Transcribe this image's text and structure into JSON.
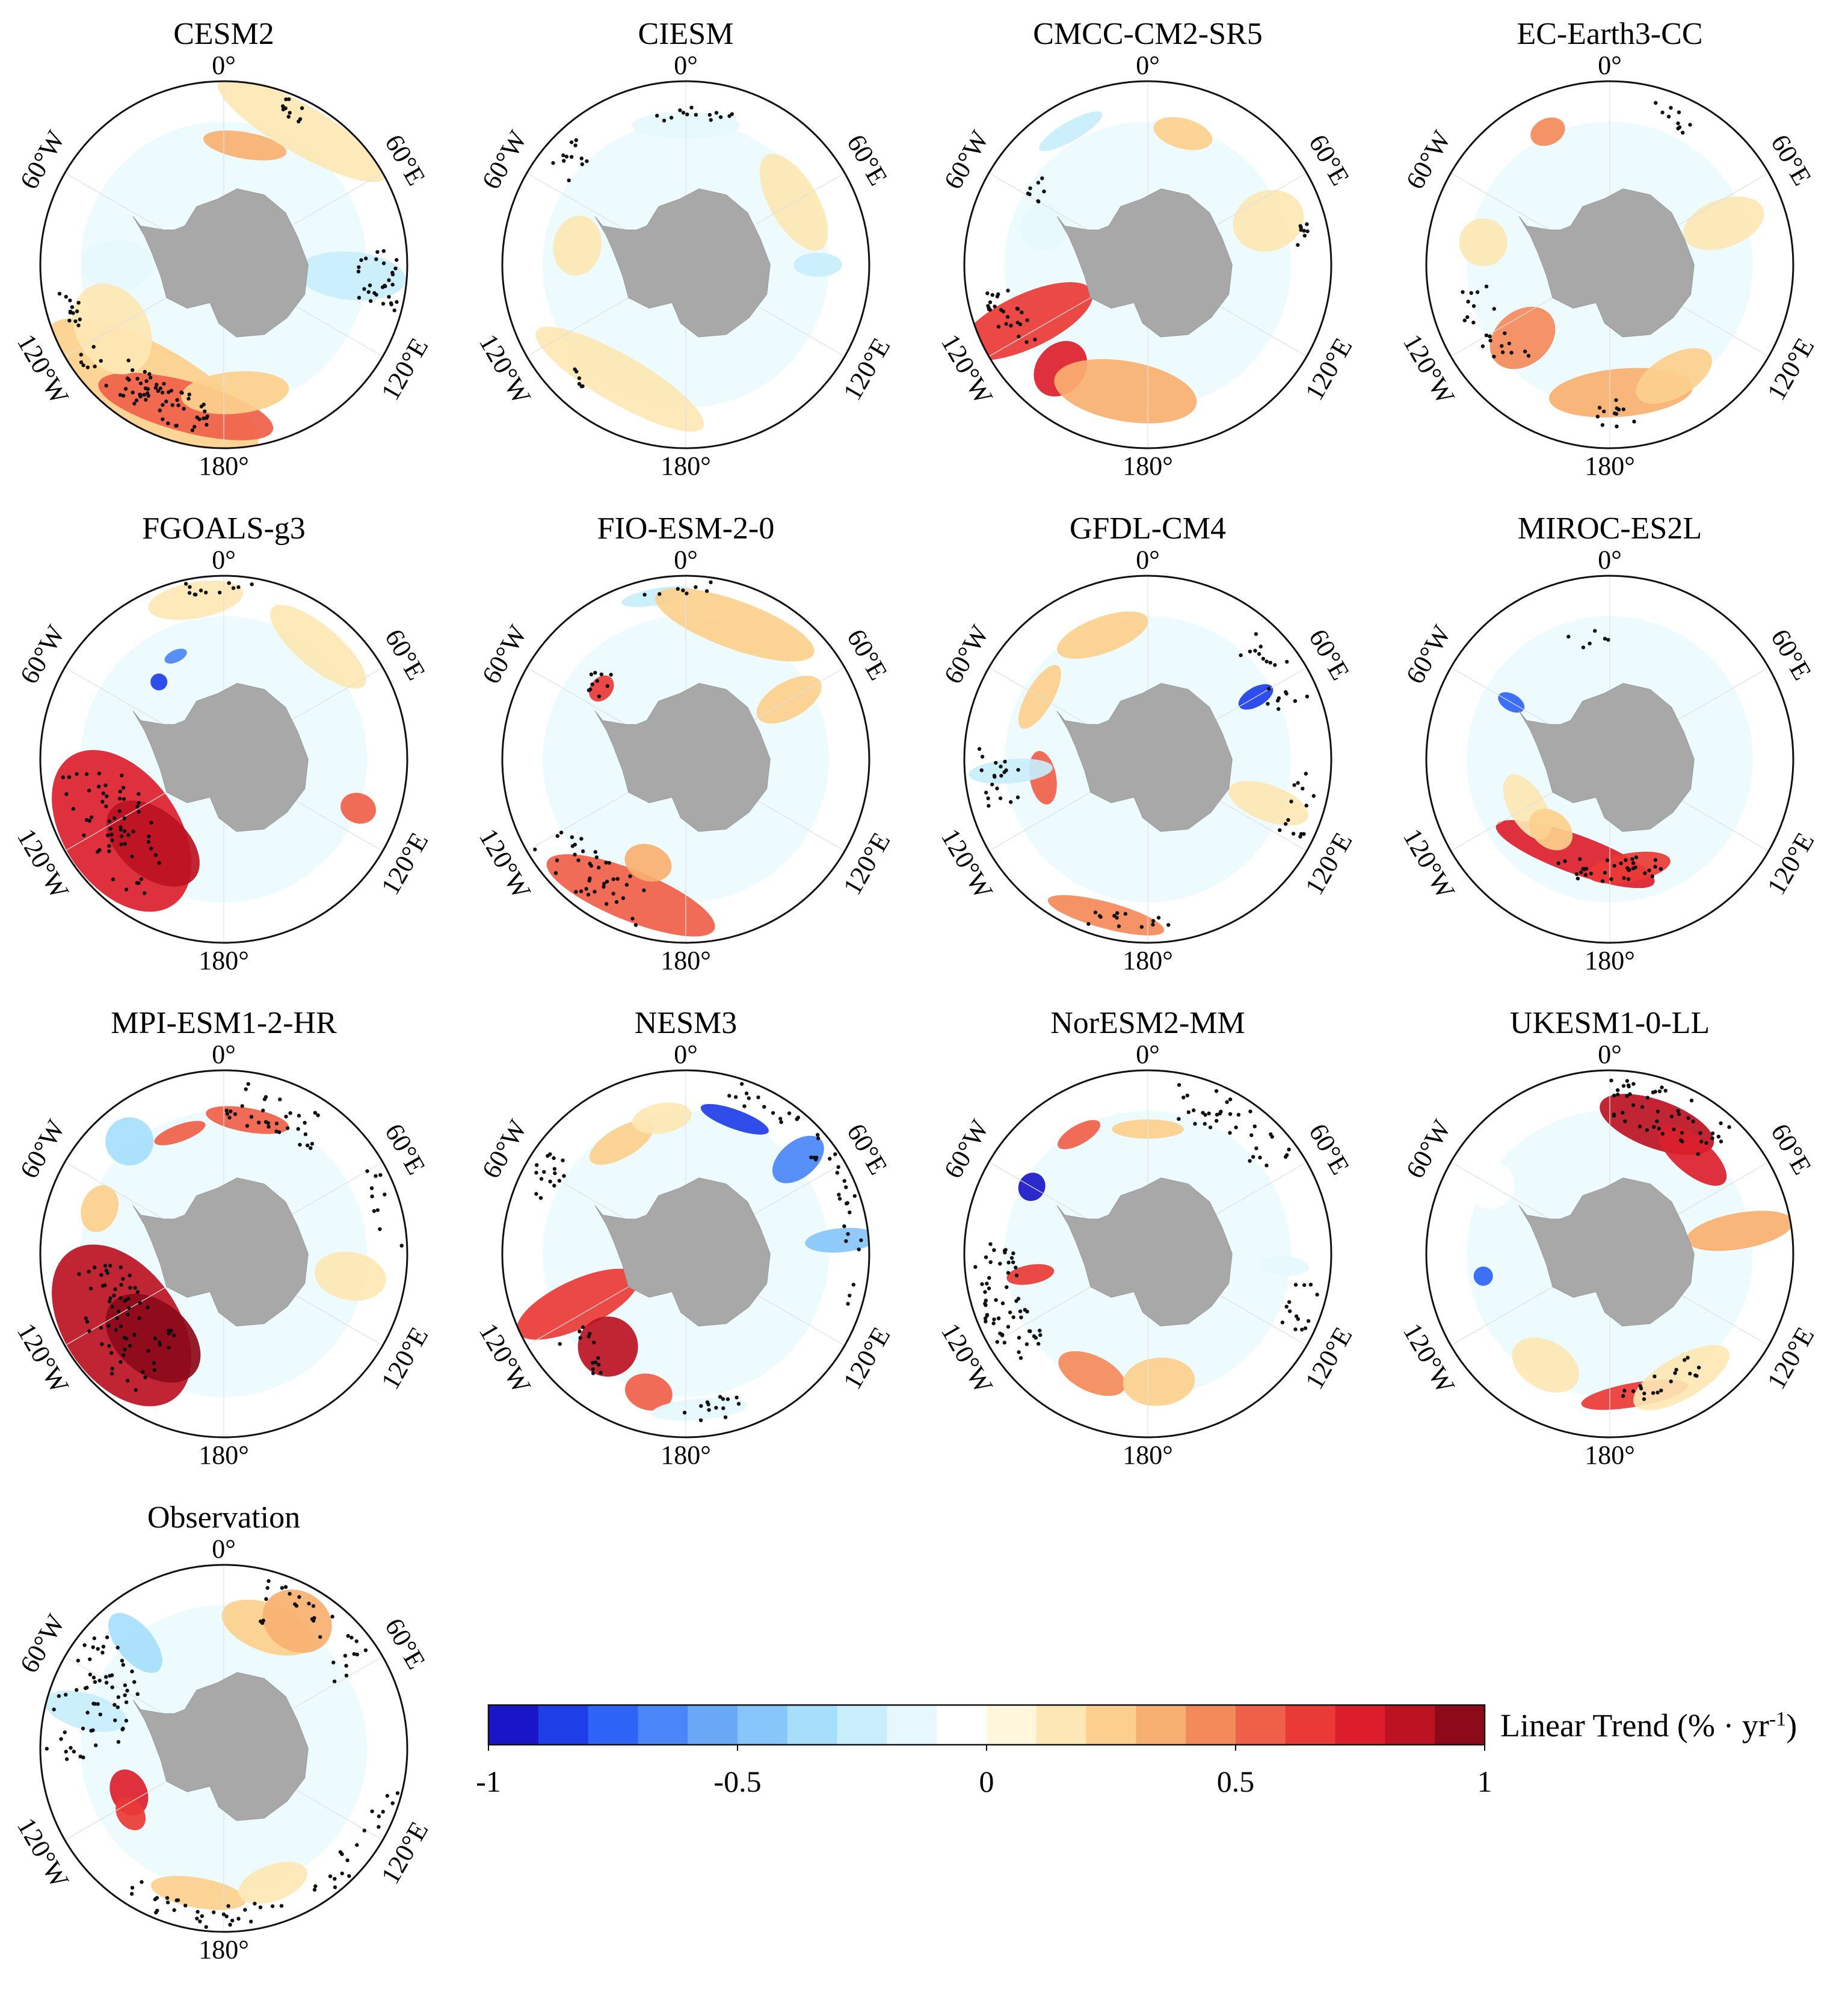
{
  "figure": {
    "panels": [
      {
        "title": "CESM2",
        "shading": "cesm2"
      },
      {
        "title": "CIESM",
        "shading": "ciesm"
      },
      {
        "title": "CMCC-CM2-SR5",
        "shading": "cmcc"
      },
      {
        "title": "EC-Earth3-CC",
        "shading": "ec"
      },
      {
        "title": "FGOALS-g3",
        "shading": "fgoals"
      },
      {
        "title": "FIO-ESM-2-0",
        "shading": "fio"
      },
      {
        "title": "GFDL-CM4",
        "shading": "gfdl"
      },
      {
        "title": "MIROC-ES2L",
        "shading": "miroc"
      },
      {
        "title": "MPI-ESM1-2-HR",
        "shading": "mpi"
      },
      {
        "title": "NESM3",
        "shading": "nesm"
      },
      {
        "title": "NorESM2-MM",
        "shading": "noresm"
      },
      {
        "title": "UKESM1-0-LL",
        "shading": "ukesm"
      },
      {
        "title": "Observation",
        "shading": "obs"
      }
    ],
    "longitude_labels": [
      "0°",
      "60°E",
      "120°E",
      "180°",
      "120°W",
      "60°W"
    ],
    "colorbar": {
      "label": "Linear Trend (% · yr",
      "label_exponent": "-1",
      "label_close": ")",
      "ticks": [
        "-1",
        "-0.5",
        "0",
        "0.5",
        "1"
      ],
      "range": [
        -1,
        1
      ],
      "colors": [
        "#1a16c8",
        "#1e3ee8",
        "#2e64f5",
        "#4a86f7",
        "#68a8f7",
        "#86c6fa",
        "#a6defc",
        "#c8eefc",
        "#e6f8fd",
        "#ffffff",
        "#fff6dc",
        "#fde7b4",
        "#fcd08c",
        "#f8b070",
        "#f48a5a",
        "#f06048",
        "#ea3a36",
        "#dc1e2c",
        "#bc1222",
        "#8c0a1a"
      ]
    },
    "colors": {
      "land": "#a8a8a8",
      "frame": "#111111",
      "stipple": "#111111"
    }
  }
}
